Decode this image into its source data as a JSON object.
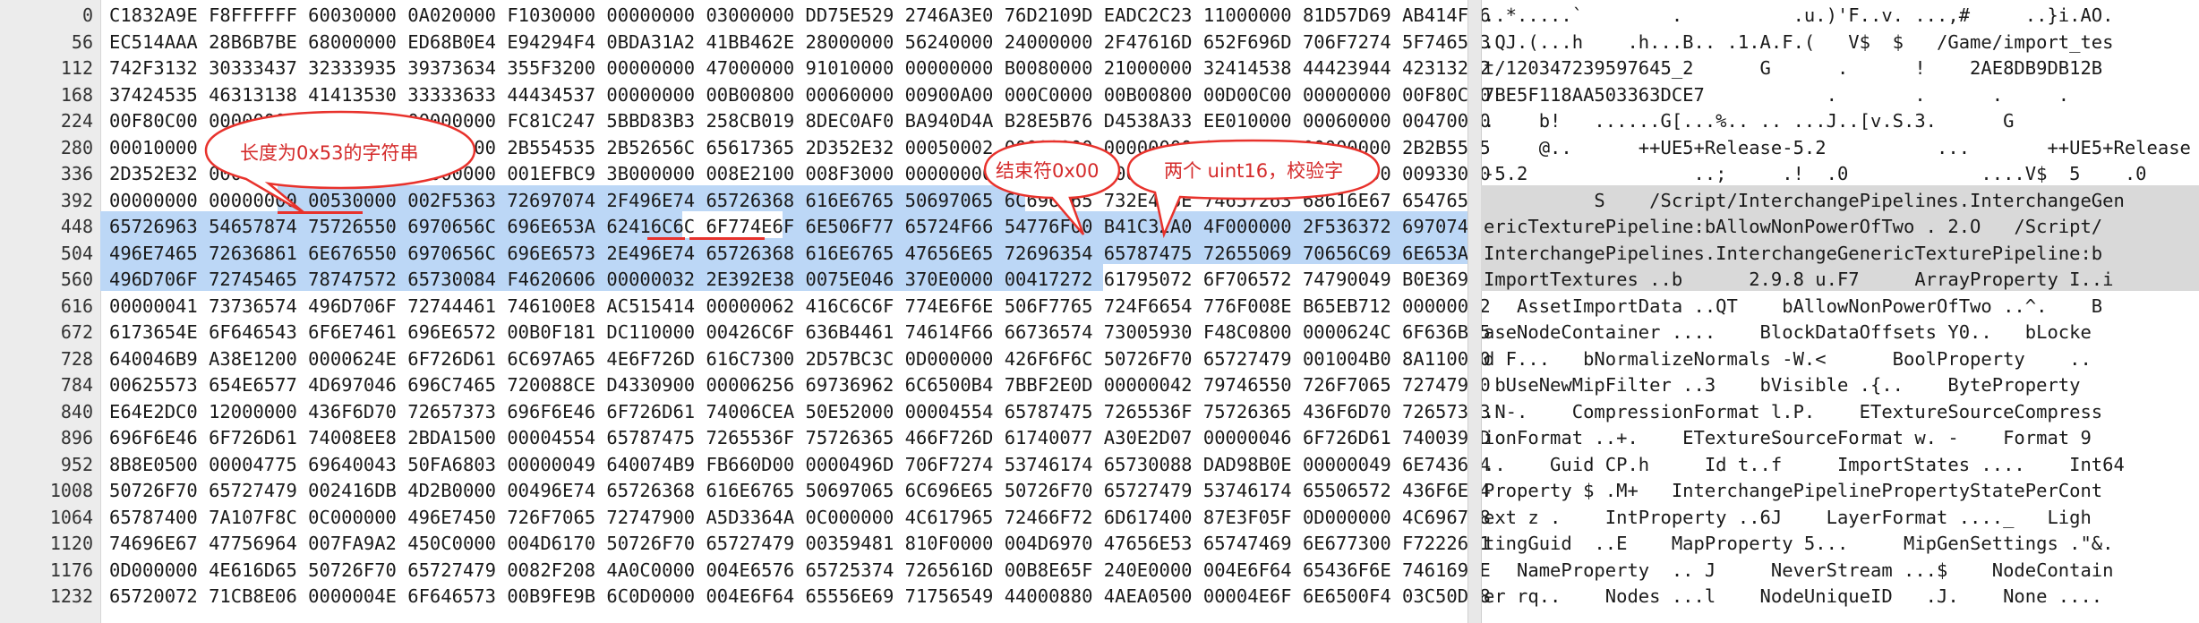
{
  "offsets": [
    "0",
    "56",
    "112",
    "168",
    "224",
    "280",
    "336",
    "392",
    "448",
    "504",
    "560",
    "616",
    "672",
    "728",
    "784",
    "840",
    "896",
    "952",
    "1008",
    "1064",
    "1120",
    "1176",
    "1232"
  ],
  "hex_rows": [
    "C1832A9E F8FFFFFF 60030000 0A020000 F1030000 00000000 03000000 DD75E529 2746A3E0 76D2109D EADC2C23 11000000 81D57D69 AB414FE6",
    "EC514AAA 28B6B7BE 68000000 ED68B0E4 E94294F4 0BDA31A2 41BB462E 28000000 56240000 24000000 2F47616D 652F696D 706F7274 5F746573",
    "742F3132 30333437 32333935 39373634 355F3200 00000000 47000000 91010000 00000000 B0080000 21000000 32414538 44423944 42313242",
    "37424535 46313138 41413530 33333633 44434537 00000000 00B00800 00060000 00900A00 000C0000 00B00800 00D00C00 00000000 00F80C00",
    "00F80C00 00000000 00000000 00000000 FC81C247 5BBD83B3 258CB019 8DEC0AF0 BA940D4A B28E5B76 D4538A33 EE010000 00060000 00470000",
    "00010000 00000000 00000000 00000000 2B554535 2B52656C 65617365 2D352E32 00050002 00000000 00000000 00000112 00000000 2B2B5545",
    "2D352E32 00000000 00000000 00000000 001EFBC9 3B000000 008E2100 008F3000 00000000 00000000 00000000 00000000 00000000 00933000",
    "00000000 00000000 00530000 002F5363 72697074 2F496E74 65726368 616E6765 50697065 6C696E65 732E496E 74657263 68616E67 6547656E",
    "65726963 54657874 75726550 6970656C 696E653A 62416C6C 6F774E6F 6E506F77 65724F66 54776F00 B41C32A0 4F000000 2F536372 6970742F",
    "496E7465 72636861 6E676550 6970656C 696E6573 2E496E74 65726368 616E6765 47656E65 72696354 65787475 72655069 70656C69 6E653A62",
    "496D706F 72745465 78747572 65730084 F4620606 00000032 2E392E38 0075E046 370E0000 00417272 61795072 6F706572 74790049 B0E36910",
    "00000041 73736574 496D706F 72744461 746100E8 AC515414 00000062 416C6C6F 774E6F6E 506F7765 724F6654 776F008E B65EB712 00000042",
    "6173654E 6F646543 6F6E7461 696E6572 00B0F181 DC110000 00426C6F 636B4461 74614F66 66736574 73005930 F48C0800 0000624C 6F636B65",
    "640046B9 A38E1200 0000624E 6F726D61 6C697A65 4E6F726D 616C7300 2D57BC3C 0D000000 426F6F6C 50726F70 65727479 001004B0 8A110000",
    "00625573 654E6577 4D697046 696C7465 720088CE D4330900 00006256 69736962 6C6500B4 7BBF2E0D 00000042 79746550 726F7065 72747900",
    "E64E2DC0 12000000 436F6D70 72657373 696F6E46 6F726D61 74006CEA 50E52000 00004554 65787475 7265536F 75726365 436F6D70 72657373",
    "696F6E46 6F726D61 74008EE8 2BDA1500 00004554 65787475 7265536F 75726365 466F726D 61740077 A30E2D07 00000046 6F726D61 7400390D",
    "8B8E0500 00004775 69640043 50FA6803 00000049 640074B9 FB660D00 0000496D 706F7274 53746174 65730088 DAD98B0E 00000049 6E743634",
    "50726F70 65727479 002416DB 4D2B0000 00496E74 65726368 616E6765 50697065 6C696E65 50726F70 65727479 53746174 65506572 436F6E74",
    "65787400 7A107F8C 0C000000 496E7450 726F7065 72747900 A5D3364A 0C000000 4C617965 72466F72 6D617400 87E3F05F 0D000000 4C696768",
    "74696E67 47756964 007FA9A2 450C0000 004D6170 50726F70 65727479 00359481 810F0000 004D6970 47656E53 65747469 6E677300 F72226A1",
    "0D000000 4E616D65 50726F70 65727479 0082F208 4A0C0000 004E6576 65725374 7265616D 00B8E65F 240E0000 004E6F64 65436F6E 7461696E",
    "65720072 71CB8E06 0000004E 6F646573 00B9FE9B 6C0D0000 004E6F64 65556E69 71756549 44000880 4AEA0500 00004E6F 6E6500F4 03C50D08"
  ],
  "text_rows": [
    "..*.....`        .          .u.)'F..v. ...,#     ..}i.AO.",
    ".QJ.(...h    .h...B.. .1.A.F.(   V$  $   /Game/import_tes",
    "t/120347239597645_2      G      .      !    2AE8DB9DB12B",
    "7BE5F118AA503363DCE7           .       .      .     .    ",
    ".    b!   ......G[...%.. .. ...J..[v.S.3.      G        ",
    "     @..      ++UE5+Release-5.2          ...       ++UE5+Release",
    "-5.2               ..;     .!  .0            ....V$  5    .0",
    "          S    /Script/InterchangePipelines.InterchangeGen",
    "ericTexturePipeline:bAllowNonPowerOfTwo . 2.O   /Script/",
    "InterchangePipelines.InterchangeGenericTexturePipeline:b",
    "ImportTextures ..b      2.9.8 u.F7     ArrayProperty I..i",
    "   AssetImportData ..QT    bAllowNonPowerOfTwo ..^.    B",
    "aseNodeContainer ....    BlockDataOffsets Y0..   bLocke",
    "d F...   bNormalizeNormals -W.<      BoolProperty    ..",
    " bUseNewMipFilter ..3    bVisible .{..    ByteProperty",
    ".N-.    CompressionFormat l.P.    ETextureSourceCompress",
    "ionFormat ..+.    ETextureSourceFormat w. -    Format 9",
    "..    Guid CP.h     Id t..f     ImportStates ....    Int64",
    "Property $ .M+   InterchangePipelinePropertyStatePerCont",
    "ext z .    IntProperty ..6J    LayerFormat ...._   Ligh",
    "tingGuid  ..E    MapProperty 5...     MipGenSettings .\"&.",
    "   NameProperty  .. J     NeverStream ...$    NodeContain",
    "er rq..    Nodes ...l    NodeUniqueID   .J.    None ...."
  ],
  "annotations": {
    "length_note": "长度为0x53的字符串",
    "terminator_note": "结束符0x00",
    "checksum_note": "两个 uint16，校验字"
  }
}
